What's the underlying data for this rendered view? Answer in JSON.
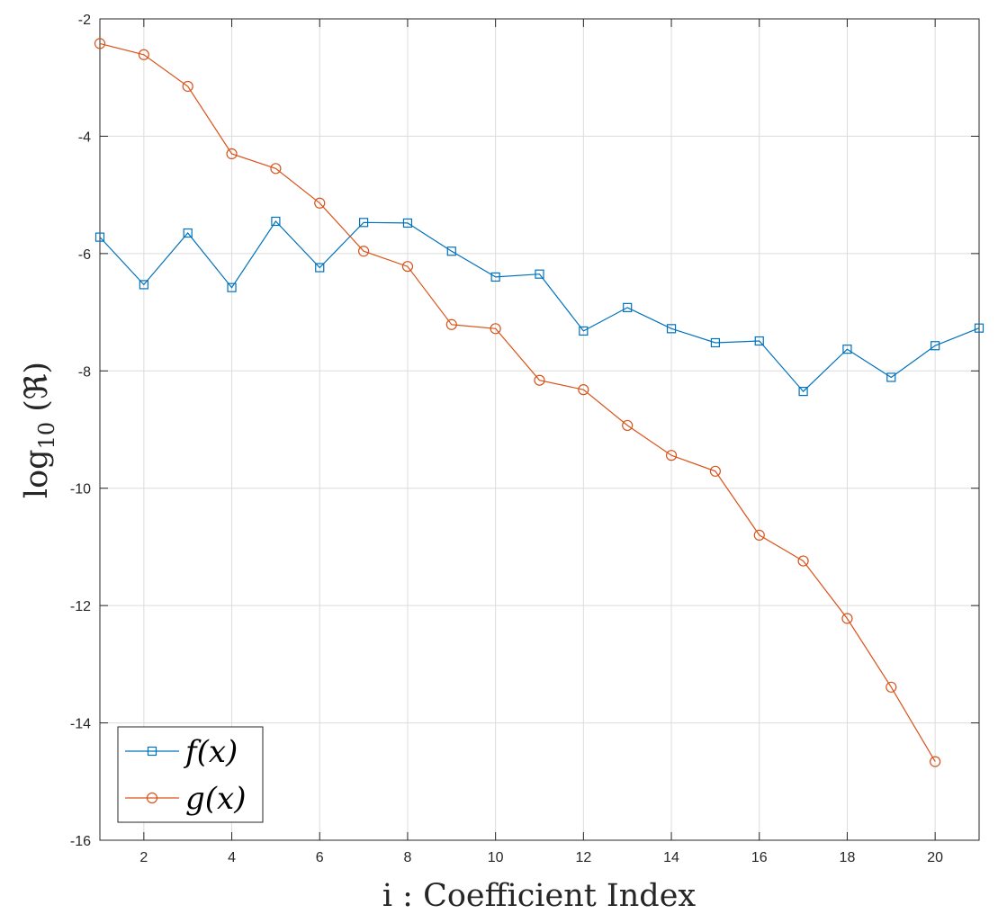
{
  "chart_data": {
    "type": "line",
    "title": "",
    "xlabel": "i : Coefficient Index",
    "ylabel": "log10 (ℜ)",
    "xlim": [
      1,
      21
    ],
    "ylim": [
      -16,
      -2
    ],
    "xticks": [
      2,
      4,
      6,
      8,
      10,
      12,
      14,
      16,
      18,
      20
    ],
    "yticks": [
      -2,
      -4,
      -6,
      -8,
      -10,
      -12,
      -14,
      -16
    ],
    "xtick_labels": [
      "2",
      "4",
      "6",
      "8",
      "10",
      "12",
      "14",
      "16",
      "18",
      "20"
    ],
    "ytick_labels": [
      "-2",
      "-4",
      "-6",
      "-8",
      "-10",
      "-12",
      "-14",
      "-16"
    ],
    "grid": true,
    "legend_position": "bottom-left",
    "series": [
      {
        "name": "f(x)",
        "color": "#0072BD",
        "marker": "square",
        "x": [
          1,
          2,
          3,
          4,
          5,
          6,
          7,
          8,
          9,
          10,
          11,
          12,
          13,
          14,
          15,
          16,
          17,
          18,
          19,
          20,
          21
        ],
        "values": [
          -5.72,
          -6.53,
          -5.65,
          -6.58,
          -5.45,
          -6.24,
          -5.47,
          -5.48,
          -5.96,
          -6.4,
          -6.35,
          -7.32,
          -6.92,
          -7.28,
          -7.52,
          -7.49,
          -8.35,
          -7.63,
          -8.11,
          -7.57,
          -7.27
        ]
      },
      {
        "name": "g(x)",
        "color": "#D95319",
        "marker": "circle",
        "x": [
          1,
          2,
          3,
          4,
          5,
          6,
          7,
          8,
          9,
          10,
          11,
          12,
          13,
          14,
          15,
          16,
          17,
          18,
          19,
          20
        ],
        "values": [
          -2.42,
          -2.61,
          -3.15,
          -4.3,
          -4.55,
          -5.14,
          -5.96,
          -6.22,
          -7.21,
          -7.28,
          -8.16,
          -8.32,
          -8.93,
          -9.44,
          -9.71,
          -10.8,
          -11.24,
          -12.22,
          -13.39,
          -14.66
        ]
      }
    ]
  }
}
